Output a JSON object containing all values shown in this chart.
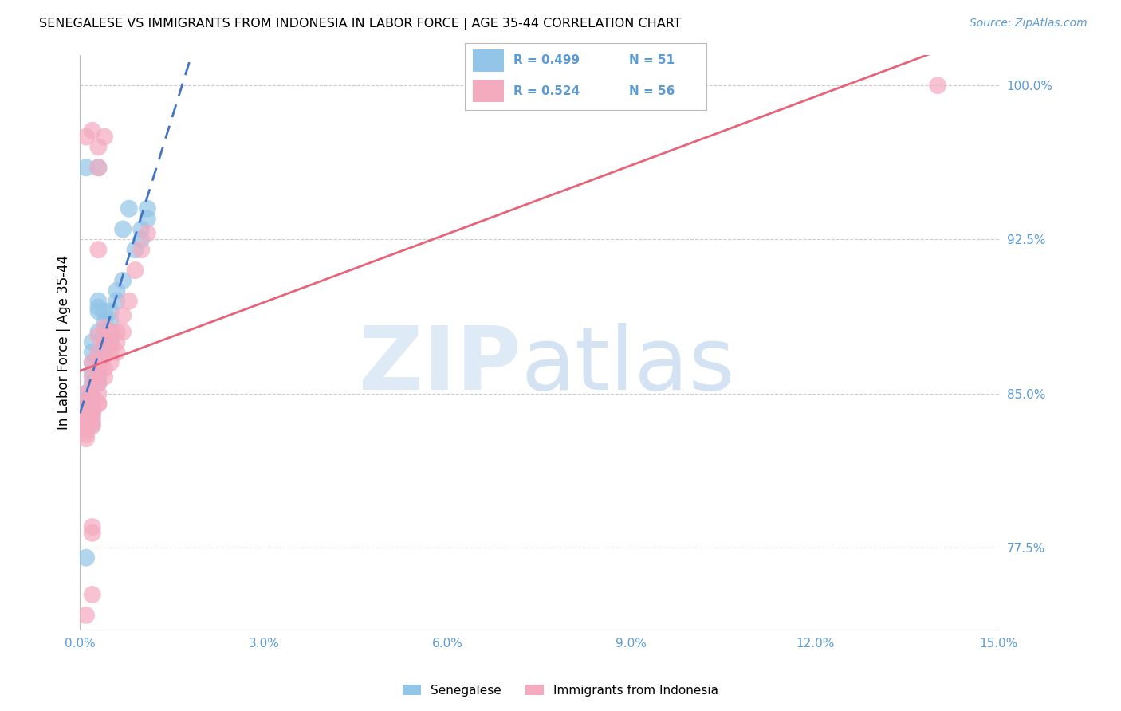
{
  "title": "SENEGALESE VS IMMIGRANTS FROM INDONESIA IN LABOR FORCE | AGE 35-44 CORRELATION CHART",
  "source": "Source: ZipAtlas.com",
  "ylabel": "In Labor Force | Age 35-44",
  "ylabel_right_ticks": [
    "77.5%",
    "85.0%",
    "92.5%",
    "100.0%"
  ],
  "ylabel_right_values": [
    0.775,
    0.85,
    0.925,
    1.0
  ],
  "xmin": 0.0,
  "xmax": 0.15,
  "ymin": 0.735,
  "ymax": 1.015,
  "legend_R_blue": "R = 0.499",
  "legend_N_blue": "N = 51",
  "legend_R_pink": "R = 0.524",
  "legend_N_pink": "N = 56",
  "blue_color": "#92C5E8",
  "pink_color": "#F4AABF",
  "blue_line_color": "#4472C4",
  "pink_line_color": "#E8637A",
  "blue_scatter_x": [
    0.001,
    0.001,
    0.001,
    0.001,
    0.001,
    0.001,
    0.001,
    0.001,
    0.002,
    0.002,
    0.002,
    0.002,
    0.002,
    0.002,
    0.002,
    0.002,
    0.002,
    0.002,
    0.002,
    0.003,
    0.003,
    0.003,
    0.003,
    0.003,
    0.003,
    0.003,
    0.003,
    0.004,
    0.004,
    0.004,
    0.004,
    0.004,
    0.004,
    0.005,
    0.005,
    0.005,
    0.005,
    0.006,
    0.006,
    0.007,
    0.007,
    0.008,
    0.009,
    0.01,
    0.01,
    0.011,
    0.011,
    0.001,
    0.002,
    0.003,
    0.001
  ],
  "blue_scatter_y": [
    0.85,
    0.847,
    0.845,
    0.843,
    0.84,
    0.838,
    0.836,
    0.84,
    0.85,
    0.848,
    0.845,
    0.843,
    0.842,
    0.84,
    0.855,
    0.86,
    0.865,
    0.87,
    0.875,
    0.855,
    0.858,
    0.862,
    0.868,
    0.88,
    0.89,
    0.892,
    0.895,
    0.87,
    0.872,
    0.875,
    0.88,
    0.885,
    0.89,
    0.875,
    0.88,
    0.885,
    0.89,
    0.895,
    0.9,
    0.905,
    0.93,
    0.94,
    0.92,
    0.93,
    0.925,
    0.935,
    0.94,
    0.77,
    0.835,
    0.96,
    0.96
  ],
  "pink_scatter_x": [
    0.001,
    0.001,
    0.001,
    0.001,
    0.001,
    0.001,
    0.001,
    0.001,
    0.001,
    0.002,
    0.002,
    0.002,
    0.002,
    0.002,
    0.002,
    0.002,
    0.002,
    0.002,
    0.003,
    0.003,
    0.003,
    0.003,
    0.003,
    0.003,
    0.003,
    0.004,
    0.004,
    0.004,
    0.004,
    0.004,
    0.005,
    0.005,
    0.005,
    0.005,
    0.006,
    0.006,
    0.006,
    0.007,
    0.007,
    0.008,
    0.009,
    0.01,
    0.011,
    0.001,
    0.002,
    0.003,
    0.003,
    0.004,
    0.002,
    0.003,
    0.14,
    0.003,
    0.002,
    0.002,
    0.002,
    0.001
  ],
  "pink_scatter_y": [
    0.84,
    0.838,
    0.836,
    0.834,
    0.832,
    0.83,
    0.828,
    0.845,
    0.85,
    0.84,
    0.838,
    0.836,
    0.834,
    0.843,
    0.848,
    0.853,
    0.858,
    0.865,
    0.845,
    0.85,
    0.855,
    0.86,
    0.865,
    0.87,
    0.878,
    0.858,
    0.862,
    0.868,
    0.875,
    0.882,
    0.865,
    0.87,
    0.875,
    0.88,
    0.87,
    0.875,
    0.88,
    0.88,
    0.888,
    0.895,
    0.91,
    0.92,
    0.928,
    0.975,
    0.978,
    0.96,
    0.97,
    0.975,
    0.84,
    0.92,
    1.0,
    0.845,
    0.782,
    0.785,
    0.752,
    0.742
  ]
}
